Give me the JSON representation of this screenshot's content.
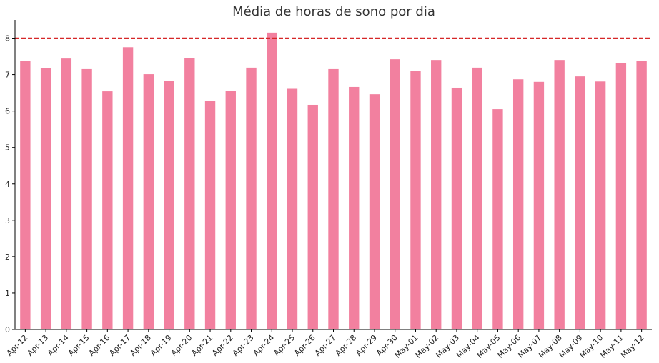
{
  "chart_data": {
    "type": "bar",
    "title": "Média de horas de sono por dia",
    "xlabel": "",
    "ylabel": "",
    "ylim": [
      0,
      8.5
    ],
    "yticks": [
      0,
      1,
      2,
      3,
      4,
      5,
      6,
      7,
      8
    ],
    "grid": false,
    "bar_color": "#f2809f",
    "reference_line": {
      "value": 8,
      "color": "#d62728",
      "style": "dashed"
    },
    "categories": [
      "Apr-12",
      "Apr-13",
      "Apr-14",
      "Apr-15",
      "Apr-16",
      "Apr-17",
      "Apr-18",
      "Apr-19",
      "Apr-20",
      "Apr-21",
      "Apr-22",
      "Apr-23",
      "Apr-24",
      "Apr-25",
      "Apr-26",
      "Apr-27",
      "Apr-28",
      "Apr-29",
      "Apr-30",
      "May-01",
      "May-02",
      "May-03",
      "May-04",
      "May-05",
      "May-06",
      "May-07",
      "May-08",
      "May-09",
      "May-10",
      "May-11",
      "May-12"
    ],
    "values": [
      7.37,
      7.18,
      7.44,
      7.15,
      6.54,
      7.75,
      7.01,
      6.83,
      7.46,
      6.28,
      6.56,
      7.19,
      8.15,
      6.61,
      6.17,
      7.15,
      6.66,
      6.46,
      7.42,
      7.09,
      7.4,
      6.64,
      7.19,
      6.05,
      6.87,
      6.8,
      7.4,
      6.95,
      6.81,
      7.32,
      7.38
    ]
  }
}
